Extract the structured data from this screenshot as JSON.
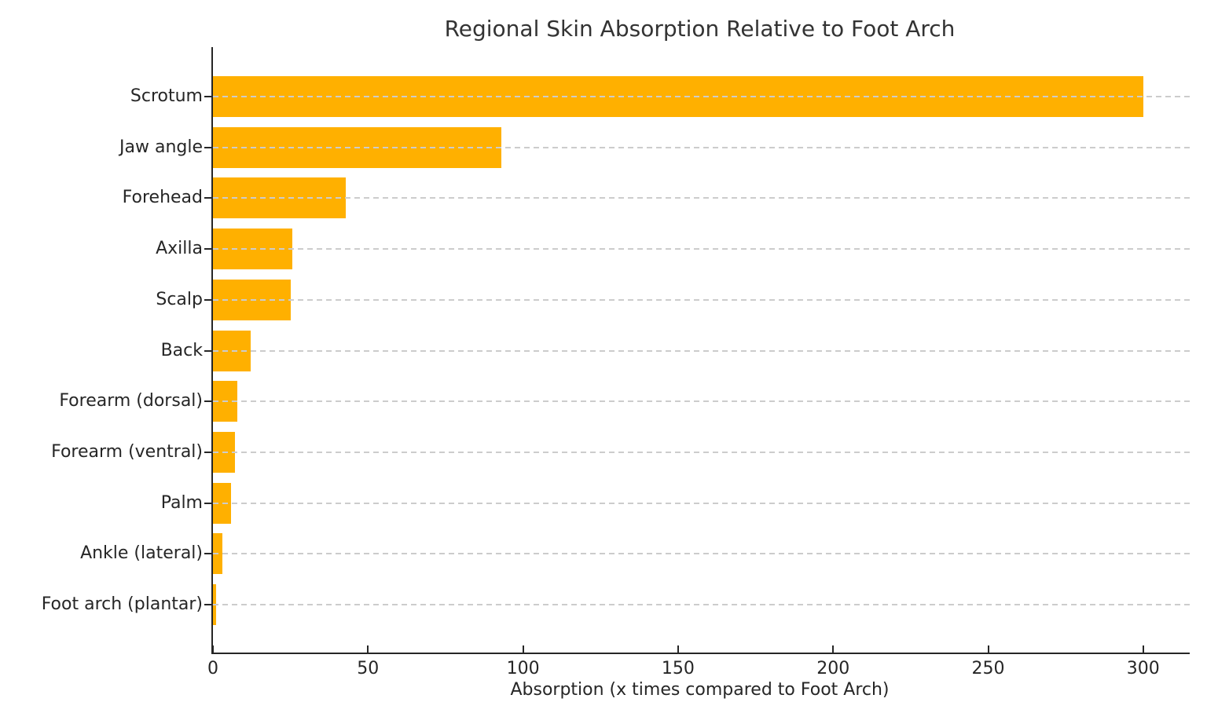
{
  "chart_data": {
    "type": "bar",
    "orientation": "horizontal",
    "title": "Regional Skin Absorption Relative to Foot Arch",
    "xlabel": "Absorption (x times compared to Foot Arch)",
    "ylabel": "",
    "categories": [
      "Scrotum",
      "Jaw angle",
      "Forehead",
      "Axilla",
      "Scalp",
      "Back",
      "Forearm (dorsal)",
      "Forearm (ventral)",
      "Palm",
      "Ankle (lateral)",
      "Foot arch (plantar)"
    ],
    "values": [
      300,
      92.9,
      42.9,
      25.7,
      25,
      12.1,
      7.9,
      7.1,
      5.9,
      3,
      1
    ],
    "x_ticks": [
      0,
      50,
      100,
      150,
      200,
      250,
      300
    ],
    "xlim": [
      0,
      315
    ],
    "grid": "horizontal-dashed",
    "legend": "none",
    "colors": {
      "bar": "#FFB000",
      "grid": "#CCCCCC",
      "text": "#262626",
      "spine": "#262626",
      "background": "#FFFFFF"
    }
  }
}
